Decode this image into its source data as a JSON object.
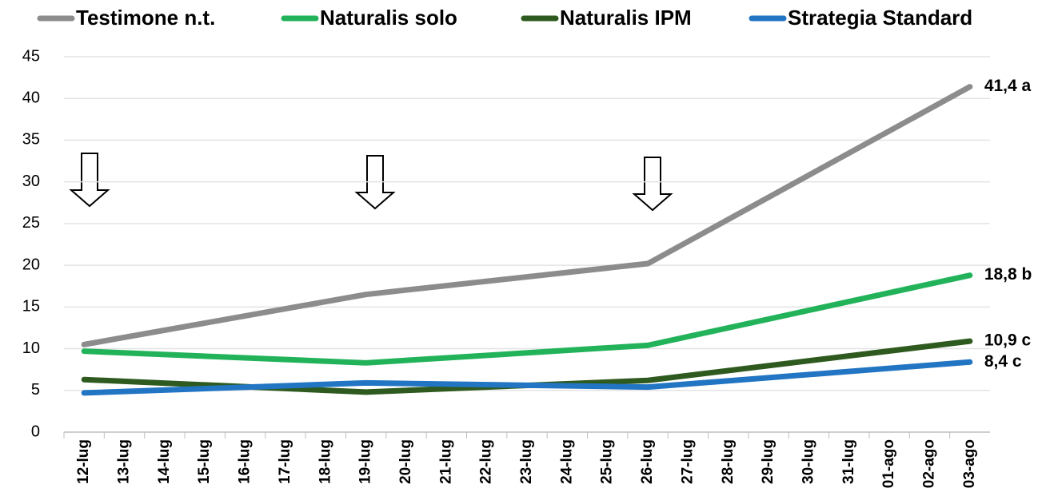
{
  "chart_data": {
    "type": "line",
    "categories": [
      "12-lug",
      "13-lug",
      "14-lug",
      "15-lug",
      "16-lug",
      "17-lug",
      "18-lug",
      "19-lug",
      "20-lug",
      "21-lug",
      "22-lug",
      "23-lug",
      "24-lug",
      "25-lug",
      "26-lug",
      "27-lug",
      "28-lug",
      "29-lug",
      "30-lug",
      "31-lug",
      "01-ago",
      "02-ago",
      "03-ago"
    ],
    "series": [
      {
        "name": "Testimone n.t.",
        "color": "#8c8c8c",
        "x": [
          "12-lug",
          "19-lug",
          "26-lug",
          "03-ago"
        ],
        "values": [
          10.5,
          16.5,
          20.2,
          41.4
        ],
        "value_labels": [
          null,
          null,
          null,
          "41,4 a"
        ]
      },
      {
        "name": "Naturalis solo",
        "color": "#22b35a",
        "x": [
          "12-lug",
          "19-lug",
          "26-lug",
          "03-ago"
        ],
        "values": [
          9.7,
          8.3,
          10.4,
          18.8
        ],
        "value_labels": [
          null,
          null,
          null,
          "18,8 b"
        ]
      },
      {
        "name": "Naturalis IPM",
        "color": "#2e5a1f",
        "x": [
          "12-lug",
          "19-lug",
          "26-lug",
          "03-ago"
        ],
        "values": [
          6.3,
          4.8,
          6.2,
          10.9
        ],
        "value_labels": [
          null,
          null,
          null,
          "10,9 c"
        ]
      },
      {
        "name": "Strategia Standard",
        "color": "#2275c3",
        "x": [
          "12-lug",
          "19-lug",
          "26-lug",
          "03-ago"
        ],
        "values": [
          4.7,
          5.9,
          5.4,
          8.4
        ],
        "value_labels": [
          null,
          null,
          null,
          "8,4 c"
        ]
      }
    ],
    "ylim": [
      0,
      45
    ],
    "yticks": [
      0,
      5,
      10,
      15,
      20,
      25,
      30,
      35,
      40,
      45
    ],
    "grid": true,
    "legend": "top"
  }
}
